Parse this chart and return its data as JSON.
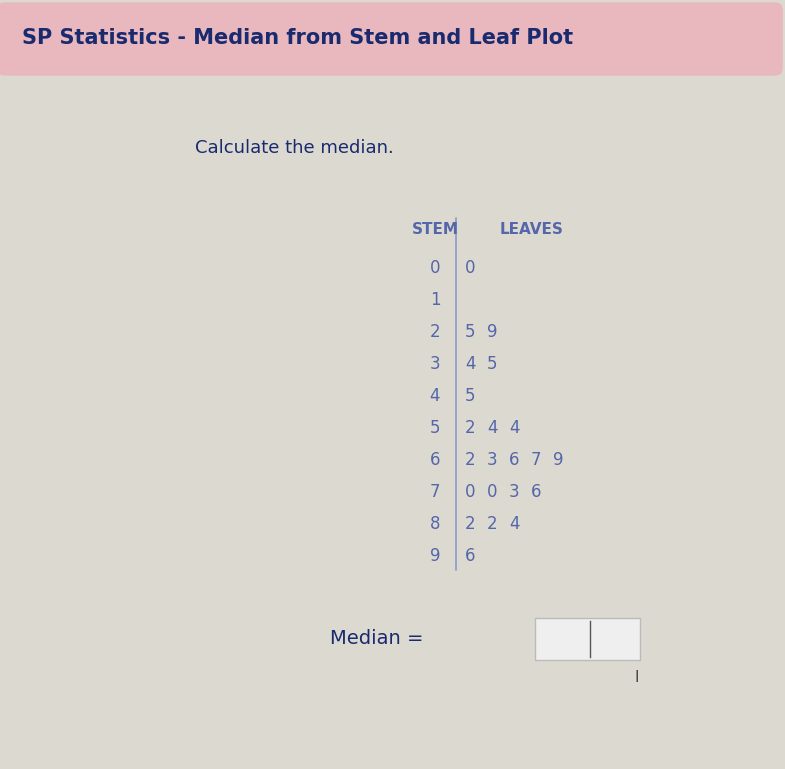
{
  "title": "SP Statistics - Median from Stem and Leaf Plot",
  "subtitle": "Calculate the median.",
  "stem_label": "STEM",
  "leaves_label": "LEAVES",
  "stems": [
    "0",
    "1",
    "2",
    "3",
    "4",
    "5",
    "6",
    "7",
    "8",
    "9"
  ],
  "leaves": [
    [
      "0"
    ],
    [],
    [
      "5",
      "9"
    ],
    [
      "4",
      "5"
    ],
    [
      "5"
    ],
    [
      "2",
      "4",
      "4"
    ],
    [
      "2",
      "3",
      "6",
      "7",
      "9"
    ],
    [
      "0",
      "0",
      "3",
      "6"
    ],
    [
      "2",
      "2",
      "4"
    ],
    [
      "6"
    ]
  ],
  "median_label": "Median =",
  "title_bg_color": "#e8b8be",
  "title_color": "#1a2a6e",
  "body_bg_color": "#dcdad0",
  "text_color": "#5566aa",
  "divider_color": "#8899cc",
  "header_color": "#5566aa",
  "input_box_color": "#f0eff0",
  "input_box_border": "#bbbbbb",
  "cursor_color": "#555555"
}
